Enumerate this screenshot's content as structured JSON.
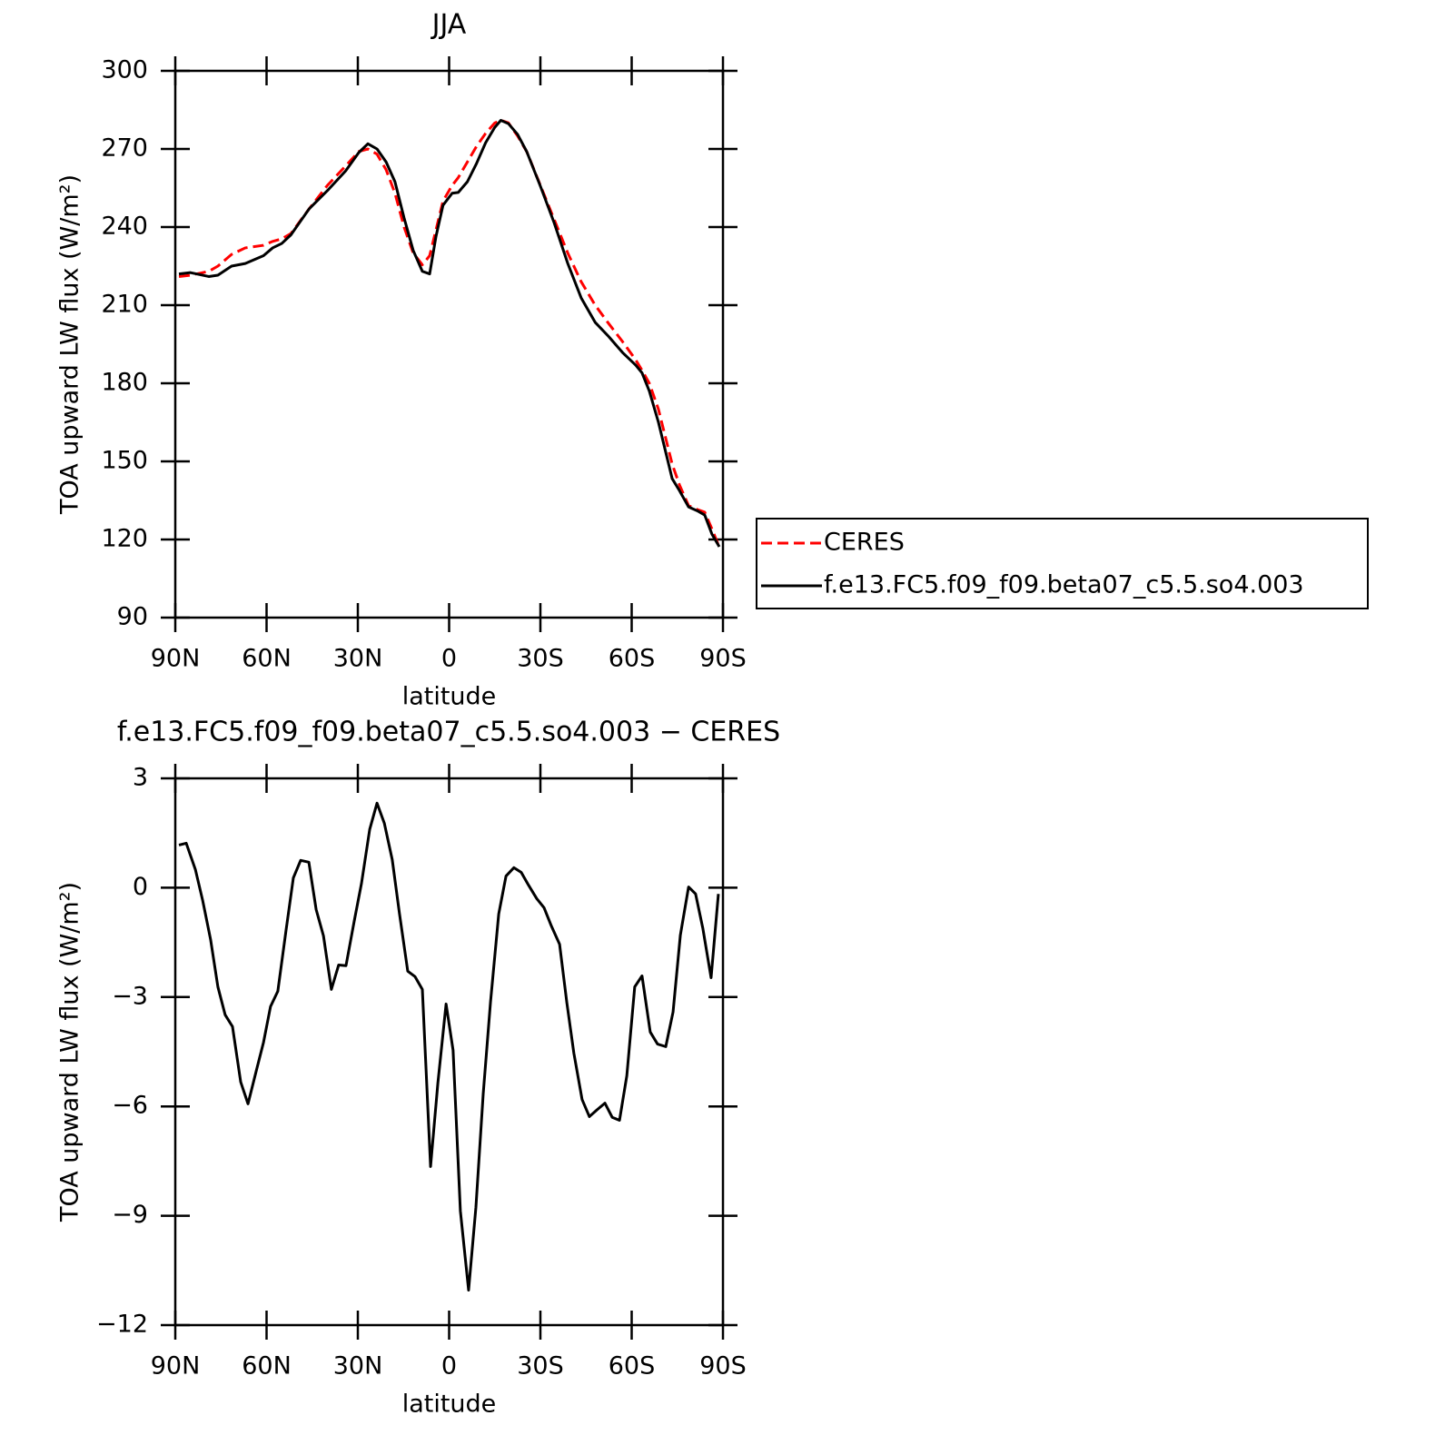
{
  "chart_data": [
    {
      "type": "line",
      "title": "JJA",
      "xlabel": "latitude",
      "ylabel": "TOA upward LW flux (W/m²)",
      "x": [
        88.8,
        85,
        79,
        76,
        71.5,
        67,
        61,
        58,
        55,
        52,
        46,
        40,
        34,
        29.7,
        26.7,
        23.7,
        20.7,
        17.8,
        14.8,
        11.8,
        8.8,
        6.4,
        4.3,
        2,
        -1,
        -3,
        -6,
        -9,
        -12,
        -15,
        -17,
        -19.5,
        -22.5,
        -25.5,
        -30,
        -34.5,
        -39,
        -43.4,
        -48,
        -52.4,
        -57,
        -61.3,
        -63.4,
        -65.8,
        -68.8,
        -73.3,
        -75.7,
        -78.7,
        -81.6,
        -84,
        -86.4,
        -88.8
      ],
      "series": [
        {
          "name": "CERES",
          "color": "#ff0000",
          "linestyle": "dashed",
          "values": [
            221,
            221.5,
            223,
            225,
            229.5,
            232,
            233,
            234.5,
            235.5,
            237.5,
            247,
            256,
            263.5,
            269,
            270,
            268,
            262,
            253,
            240,
            230,
            225.5,
            229,
            239,
            250,
            256,
            259,
            265,
            271,
            276,
            280,
            281,
            280,
            275,
            269,
            256,
            243,
            230,
            219,
            210,
            203,
            196,
            189,
            185,
            180,
            170,
            149,
            141,
            133,
            131.5,
            130.5,
            124,
            117
          ]
        },
        {
          "name": "f.e13.FC5.f09_f09.beta07_c5.5.so4.003",
          "color": "#000000",
          "linestyle": "solid",
          "values": [
            222,
            222.5,
            221,
            221.5,
            225,
            226,
            229,
            232,
            233.7,
            237,
            247,
            254,
            261.6,
            268.6,
            272,
            270,
            265,
            257.4,
            243.5,
            231,
            223,
            222,
            236.5,
            248.4,
            253,
            253.3,
            257.4,
            264.4,
            272.4,
            278.3,
            281,
            279.7,
            275.6,
            269,
            255.7,
            241.7,
            226,
            212.8,
            203.4,
            198,
            191.8,
            187,
            184,
            177,
            165,
            143.4,
            138.8,
            132.5,
            131,
            129.4,
            122,
            117.2
          ]
        }
      ],
      "xlim": [
        90,
        -90
      ],
      "xticks": [
        {
          "value": 90,
          "label": "90N"
        },
        {
          "value": 60,
          "label": "60N"
        },
        {
          "value": 30,
          "label": "30N"
        },
        0,
        {
          "value": -30,
          "label": "30S"
        },
        {
          "value": -60,
          "label": "60S"
        },
        {
          "value": -90,
          "label": "90S"
        }
      ],
      "ylim": [
        90,
        300
      ],
      "yticks": [
        90,
        120,
        150,
        180,
        210,
        240,
        270,
        300
      ],
      "legend": "outside right"
    },
    {
      "type": "line",
      "title": "f.e13.FC5.f09_f09.beta07_c5.5.so4.003 − CERES",
      "xlabel": "latitude",
      "ylabel": "TOA upward LW flux (W/m²)",
      "x": [
        88.8,
        86.4,
        83.4,
        81,
        78.4,
        76,
        73.6,
        71.2,
        68.5,
        66.1,
        63.4,
        61,
        58.7,
        56.3,
        53.6,
        51.2,
        48.8,
        46.1,
        43.7,
        41.3,
        38.7,
        36.3,
        33.9,
        31.2,
        28.8,
        26.1,
        23.7,
        21.3,
        18.7,
        16.3,
        13.6,
        11.2,
        8.8,
        6.1,
        3.7,
        1,
        -1.3,
        -3.7,
        -6.4,
        -8.8,
        -11.2,
        -13.6,
        -16.3,
        -18.7,
        -21.3,
        -23.7,
        -26.1,
        -28.8,
        -31.2,
        -33.6,
        -36.3,
        -38.7,
        -41,
        -43.7,
        -46.1,
        -48.5,
        -51.2,
        -53.6,
        -56,
        -58.4,
        -61,
        -63.4,
        -66.1,
        -68.5,
        -71.2,
        -73.6,
        -76,
        -78.7,
        -81,
        -83.4,
        -86.1,
        -88.5
      ],
      "values": [
        1.17,
        1.22,
        0.5,
        -0.35,
        -1.42,
        -2.72,
        -3.49,
        -3.81,
        -5.33,
        -5.93,
        -5.03,
        -4.24,
        -3.26,
        -2.84,
        -1.17,
        0.27,
        0.75,
        0.7,
        -0.6,
        -1.32,
        -2.79,
        -2.12,
        -2.14,
        -0.92,
        0.12,
        1.6,
        2.32,
        1.77,
        0.77,
        -0.72,
        -2.29,
        -2.44,
        -2.79,
        -7.65,
        -5.36,
        -3.19,
        -4.46,
        -8.87,
        -11.04,
        -8.77,
        -5.66,
        -3.14,
        -0.72,
        0.32,
        0.55,
        0.42,
        0.07,
        -0.3,
        -0.55,
        -1.05,
        -1.55,
        -3.16,
        -4.54,
        -5.81,
        -6.28,
        -6.1,
        -5.91,
        -6.3,
        -6.38,
        -5.16,
        -2.72,
        -2.42,
        -3.96,
        -4.29,
        -4.36,
        -3.41,
        -1.3,
        0.02,
        -0.17,
        -1.12,
        -2.47,
        -0.17
      ],
      "color": "#000000",
      "xlim": [
        90,
        -90
      ],
      "xticks": [
        {
          "value": 90,
          "label": "90N"
        },
        {
          "value": 60,
          "label": "60N"
        },
        {
          "value": 30,
          "label": "30N"
        },
        0,
        {
          "value": -30,
          "label": "30S"
        },
        {
          "value": -60,
          "label": "60S"
        },
        {
          "value": -90,
          "label": "90S"
        }
      ],
      "ylim": [
        -12,
        3
      ],
      "yticks": [
        {
          "value": -12,
          "label": "−12"
        },
        {
          "value": -9,
          "label": "−9"
        },
        {
          "value": -6,
          "label": "−6"
        },
        {
          "value": -3,
          "label": "−3"
        },
        0,
        3
      ]
    }
  ]
}
